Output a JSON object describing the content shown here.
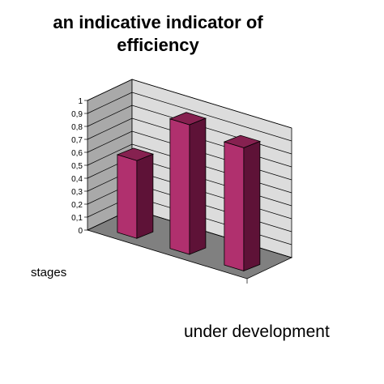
{
  "chart_data": {
    "type": "bar",
    "title_lines": [
      "an indicative indicator of",
      "efficiency"
    ],
    "xlabel": "stages",
    "ylabel": "",
    "categories": [
      "",
      "",
      ""
    ],
    "values": [
      0.6,
      1.0,
      0.95
    ],
    "ylim": [
      0,
      1
    ],
    "yticks": [
      "0",
      "0,1",
      "0,2",
      "0,3",
      "0,4",
      "0,5",
      "0,6",
      "0,7",
      "0,8",
      "0,9",
      "1"
    ],
    "grid": true,
    "legend": "none",
    "style": "3d-column",
    "colors": {
      "bar_front": "#b0306e",
      "bar_side": "#5e1237",
      "bar_top": "#862150",
      "back_wall": "#dcdcdc",
      "side_wall": "#a9a9a9",
      "floor": "#808080"
    }
  },
  "annotation": "under development"
}
